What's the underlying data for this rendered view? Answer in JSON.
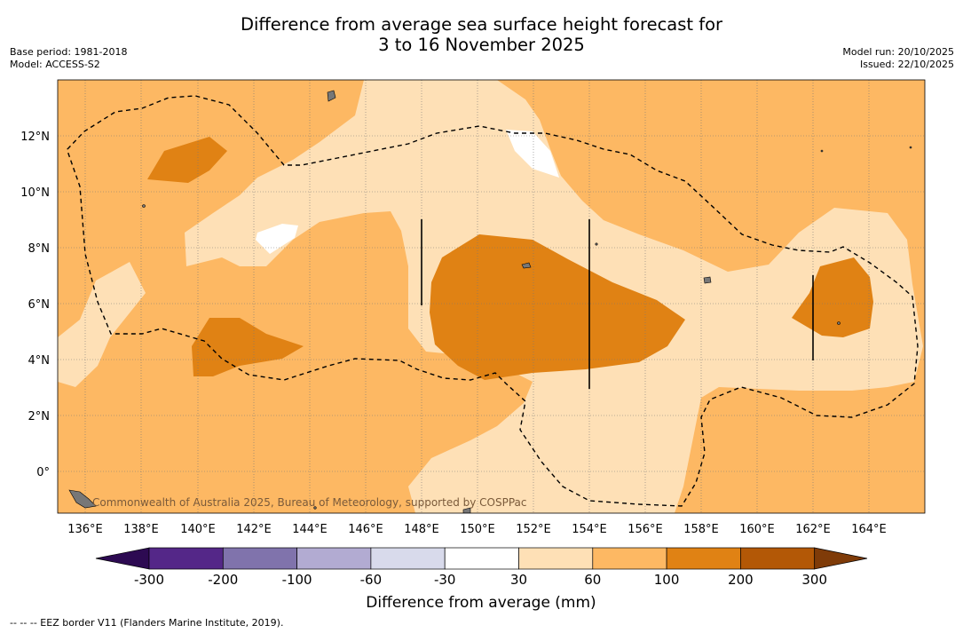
{
  "title_line1": "Difference from average sea surface height forecast for",
  "title_line2": "3 to 16 November 2025",
  "base_period": "Base period: 1981-2018",
  "model": "Model: ACCESS-S2",
  "model_run": "Model run: 20/10/2025",
  "issued": "Issued: 22/10/2025",
  "copyright": "Commonwealth of Australia 2025, Bureau of Meteorology, supported by COSPPac",
  "lon_labels": [
    "136°E",
    "138°E",
    "140°E",
    "142°E",
    "144°E",
    "146°E",
    "148°E",
    "150°E",
    "152°E",
    "154°E",
    "156°E",
    "158°E",
    "160°E",
    "162°E",
    "164°E"
  ],
  "lat_labels": [
    "12°N",
    "10°N",
    "8°N",
    "6°N",
    "4°N",
    "2°N",
    "0°"
  ],
  "colorbar": {
    "label": "Difference from average (mm)",
    "ticks": [
      "-300",
      "-200",
      "-100",
      "-60",
      "-30",
      "30",
      "60",
      "100",
      "200",
      "300"
    ],
    "colors": {
      "below_min": "#2d0a52",
      "c1": "#542788",
      "c2": "#8073ac",
      "c3": "#b2abd2",
      "c4": "#d8daeb",
      "c5": "#ffffff",
      "c6": "#fee0b6",
      "c7": "#fdb863",
      "c8": "#e08214",
      "c9": "#b35806",
      "above_max": "#7f3b08"
    }
  },
  "footer": "--  --  -- EEZ border V11 (Flanders Marine Institute, 2019)."
}
